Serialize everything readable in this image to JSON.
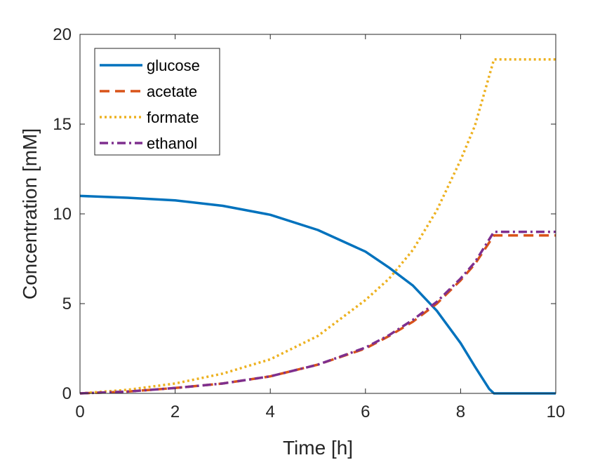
{
  "chart_data": {
    "type": "line",
    "xlabel": "Time [h]",
    "ylabel": "Concentration [mM]",
    "xlim": [
      0,
      10
    ],
    "ylim": [
      0,
      20
    ],
    "xticks": [
      "0",
      "2",
      "4",
      "6",
      "8",
      "10"
    ],
    "yticks": [
      "0",
      "5",
      "10",
      "15",
      "20"
    ],
    "grid": false,
    "legend": "top-left",
    "series": [
      {
        "name": "glucose",
        "color": "#0072BD",
        "style": "solid",
        "x": [
          0,
          1,
          2,
          3,
          4,
          5,
          6,
          6.5,
          7,
          7.5,
          8,
          8.3,
          8.6,
          8.7,
          9,
          10
        ],
        "y": [
          11.0,
          10.9,
          10.75,
          10.45,
          9.95,
          9.1,
          7.9,
          7.0,
          6.0,
          4.6,
          2.8,
          1.5,
          0.25,
          0,
          0,
          0
        ]
      },
      {
        "name": "acetate",
        "color": "#D95319",
        "style": "dashed",
        "x": [
          0,
          1,
          2,
          3,
          4,
          5,
          6,
          6.5,
          7,
          7.5,
          8,
          8.3,
          8.7,
          9,
          10
        ],
        "y": [
          0,
          0.1,
          0.3,
          0.55,
          0.95,
          1.6,
          2.5,
          3.2,
          4.0,
          5.0,
          6.3,
          7.2,
          8.8,
          8.8,
          8.8
        ]
      },
      {
        "name": "formate",
        "color": "#EDB120",
        "style": "dotted",
        "x": [
          0,
          1,
          2,
          3,
          4,
          5,
          6,
          6.5,
          7,
          7.5,
          8,
          8.3,
          8.7,
          9,
          10
        ],
        "y": [
          0,
          0.2,
          0.55,
          1.1,
          1.9,
          3.2,
          5.2,
          6.4,
          8.0,
          10.2,
          13.0,
          14.9,
          18.6,
          18.6,
          18.6
        ]
      },
      {
        "name": "ethanol",
        "color": "#7E2F8E",
        "style": "dashdot",
        "x": [
          0,
          1,
          2,
          3,
          4,
          5,
          6,
          6.5,
          7,
          7.5,
          8,
          8.3,
          8.7,
          9,
          10
        ],
        "y": [
          0,
          0.1,
          0.3,
          0.55,
          0.95,
          1.6,
          2.55,
          3.25,
          4.1,
          5.1,
          6.4,
          7.3,
          9.0,
          9.0,
          9.0
        ]
      }
    ]
  }
}
